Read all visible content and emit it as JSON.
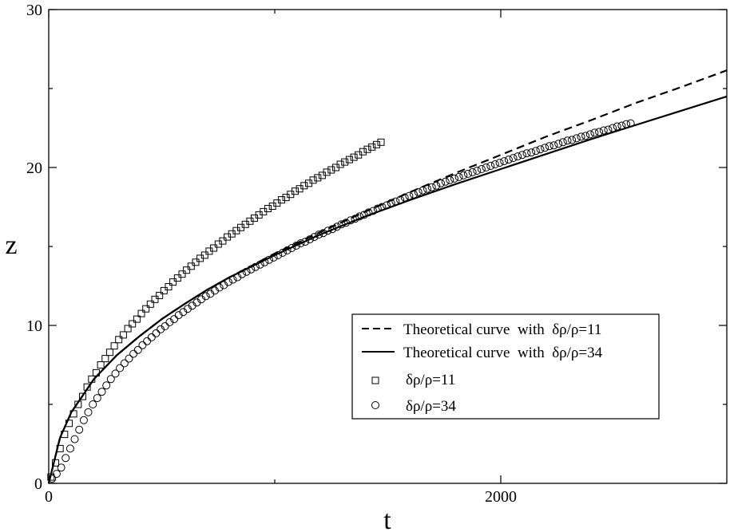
{
  "chart_data": {
    "type": "scatter",
    "title": "",
    "xlabel": "t",
    "ylabel": "z",
    "xlim": [
      0,
      3000
    ],
    "ylim": [
      0,
      30
    ],
    "x_ticks": [
      0,
      2000
    ],
    "x_tick_labels": [
      "0",
      "2000"
    ],
    "x_minor_ticks": [
      1000
    ],
    "y_ticks": [
      0,
      10,
      20,
      30
    ],
    "y_tick_labels": [
      "0",
      "10",
      "20",
      "30"
    ],
    "y_minor_ticks": [
      5,
      15,
      25
    ],
    "grid": false,
    "legend_position": "lower-right",
    "series": [
      {
        "name": "Theoretical curve  with  δρ/ρ=11",
        "kind": "line",
        "style": "dashed",
        "color": "#000000",
        "x": [
          0,
          50,
          100,
          200,
          300,
          400,
          500,
          600,
          700,
          800,
          900,
          1000,
          1200,
          1400,
          1600,
          1800,
          2000,
          2200,
          2400,
          2600,
          2800,
          3000
        ],
        "y": [
          0,
          2.9,
          4.5,
          6.6,
          8.1,
          9.3,
          10.4,
          11.35,
          12.25,
          13.05,
          13.8,
          14.55,
          15.9,
          17.2,
          18.45,
          19.65,
          20.8,
          21.95,
          23.0,
          24.1,
          25.1,
          26.15
        ]
      },
      {
        "name": "Theoretical curve  with  δρ/ρ=34",
        "kind": "line",
        "style": "solid",
        "color": "#000000",
        "x": [
          0,
          50,
          100,
          200,
          300,
          400,
          500,
          600,
          700,
          800,
          900,
          1000,
          1200,
          1400,
          1600,
          1800,
          2000,
          2200,
          2400,
          2600,
          2800,
          3000
        ],
        "y": [
          0,
          2.9,
          4.5,
          6.6,
          8.1,
          9.3,
          10.4,
          11.35,
          12.25,
          13.05,
          13.75,
          14.45,
          15.75,
          16.9,
          17.95,
          18.95,
          19.9,
          20.85,
          21.8,
          22.7,
          23.6,
          24.5
        ]
      },
      {
        "name": "δρ/ρ=11",
        "kind": "markers",
        "marker": "square",
        "x": [
          10,
          30,
          50,
          70,
          90,
          110,
          130,
          150,
          170,
          190,
          210,
          230,
          250,
          270,
          290,
          310,
          330,
          350,
          370,
          390,
          410,
          430,
          450,
          470,
          490,
          510,
          530,
          550,
          570,
          590,
          610,
          630,
          650,
          670,
          690,
          710,
          730,
          750,
          770,
          790,
          810,
          830,
          850,
          870,
          890,
          910,
          930,
          950,
          970,
          990,
          1010,
          1030,
          1050,
          1070,
          1090,
          1110,
          1130,
          1150,
          1170,
          1190,
          1210,
          1230,
          1250,
          1270,
          1290,
          1310,
          1330,
          1350,
          1370,
          1390,
          1410,
          1430,
          1450,
          1470
        ],
        "y": [
          0.4,
          1.3,
          2.2,
          3.1,
          3.8,
          4.4,
          5.0,
          5.5,
          6.1,
          6.6,
          7.0,
          7.5,
          7.9,
          8.3,
          8.7,
          9.1,
          9.4,
          9.8,
          10.1,
          10.4,
          10.75,
          11.05,
          11.35,
          11.65,
          11.9,
          12.2,
          12.45,
          12.75,
          13.0,
          13.25,
          13.5,
          13.75,
          14.0,
          14.25,
          14.45,
          14.7,
          14.9,
          15.15,
          15.35,
          15.6,
          15.8,
          16.0,
          16.2,
          16.4,
          16.6,
          16.8,
          17.0,
          17.2,
          17.4,
          17.55,
          17.75,
          17.95,
          18.1,
          18.3,
          18.5,
          18.65,
          18.85,
          19.0,
          19.2,
          19.35,
          19.5,
          19.7,
          19.85,
          20.0,
          20.2,
          20.35,
          20.5,
          20.65,
          20.8,
          21.0,
          21.15,
          21.3,
          21.45,
          21.6
        ]
      },
      {
        "name": "δρ/ρ=34",
        "kind": "markers",
        "marker": "circle",
        "x": [
          15,
          35,
          55,
          75,
          95,
          115,
          135,
          155,
          175,
          195,
          215,
          235,
          255,
          275,
          295,
          315,
          335,
          355,
          375,
          395,
          415,
          435,
          455,
          475,
          495,
          515,
          535,
          555,
          575,
          595,
          615,
          635,
          655,
          675,
          695,
          715,
          735,
          755,
          775,
          795,
          815,
          835,
          855,
          875,
          895,
          915,
          935,
          955,
          975,
          995,
          1015,
          1035,
          1055,
          1075,
          1095,
          1115,
          1135,
          1155,
          1175,
          1195,
          1215,
          1235,
          1255,
          1275,
          1295,
          1315,
          1335,
          1355,
          1375,
          1395,
          1415,
          1435,
          1455,
          1475,
          1495,
          1515,
          1535,
          1555,
          1575,
          1595,
          1615,
          1635,
          1655,
          1675,
          1695,
          1715,
          1735,
          1755,
          1775,
          1795,
          1815,
          1835,
          1855,
          1875,
          1895,
          1915,
          1935,
          1955,
          1975,
          1995,
          2015,
          2035,
          2055,
          2075,
          2095,
          2115,
          2135,
          2155,
          2175,
          2195,
          2215,
          2235,
          2255,
          2275,
          2295,
          2315,
          2335,
          2355,
          2375,
          2395,
          2415,
          2435,
          2455,
          2475,
          2495,
          2515,
          2535,
          2555,
          2575
        ],
        "y": [
          0.3,
          0.6,
          1.0,
          1.6,
          2.2,
          2.8,
          3.4,
          4.0,
          4.5,
          5.0,
          5.4,
          5.8,
          6.2,
          6.6,
          6.95,
          7.3,
          7.6,
          7.9,
          8.2,
          8.45,
          8.75,
          9.0,
          9.25,
          9.5,
          9.75,
          9.95,
          10.2,
          10.4,
          10.65,
          10.85,
          11.05,
          11.25,
          11.45,
          11.65,
          11.85,
          12.0,
          12.2,
          12.4,
          12.55,
          12.75,
          12.9,
          13.05,
          13.25,
          13.4,
          13.55,
          13.7,
          13.85,
          14.0,
          14.15,
          14.3,
          14.45,
          14.6,
          14.75,
          14.9,
          15.05,
          15.2,
          15.3,
          15.45,
          15.6,
          15.75,
          15.85,
          16.0,
          16.1,
          16.25,
          16.4,
          16.5,
          16.65,
          16.75,
          16.9,
          17.0,
          17.15,
          17.25,
          17.4,
          17.5,
          17.6,
          17.75,
          17.85,
          17.95,
          18.1,
          18.2,
          18.3,
          18.45,
          18.55,
          18.65,
          18.75,
          18.85,
          19.0,
          19.1,
          19.2,
          19.3,
          19.4,
          19.5,
          19.6,
          19.7,
          19.8,
          19.9,
          20.0,
          20.1,
          20.2,
          20.3,
          20.4,
          20.5,
          20.6,
          20.7,
          20.8,
          20.9,
          20.95,
          21.05,
          21.15,
          21.25,
          21.35,
          21.4,
          21.5,
          21.6,
          21.7,
          21.75,
          21.85,
          21.95,
          22.0,
          22.1,
          22.2,
          22.25,
          22.35,
          22.4,
          22.5,
          22.6,
          22.65,
          22.75,
          22.8
        ]
      }
    ]
  }
}
